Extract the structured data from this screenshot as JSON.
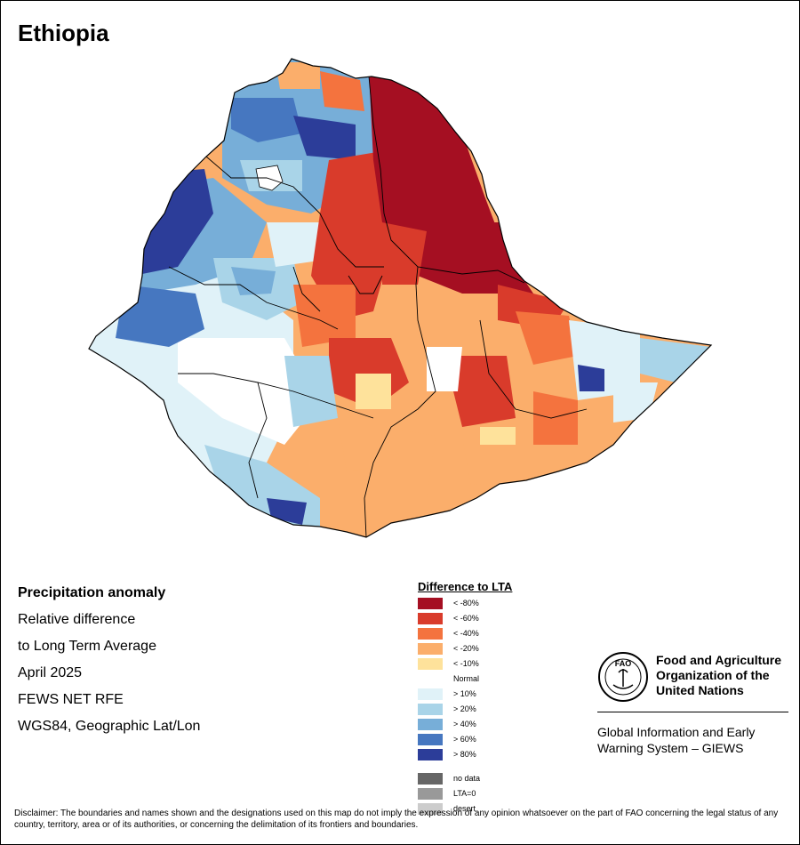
{
  "map": {
    "title": "Ethiopia"
  },
  "info": {
    "heading": "Precipitation anomaly",
    "line1": "Relative difference",
    "line2": "to Long Term Average",
    "period": "April 2025",
    "source": "FEWS NET RFE",
    "projection": "WGS84, Geographic Lat/Lon"
  },
  "legend": {
    "title": "Difference to LTA",
    "items": [
      {
        "label": "< -80%",
        "color": "#a50f22"
      },
      {
        "label": "< -60%",
        "color": "#d93b2b"
      },
      {
        "label": "< -40%",
        "color": "#f4733e"
      },
      {
        "label": "< -20%",
        "color": "#fbae6b"
      },
      {
        "label": "< -10%",
        "color": "#fee29b"
      },
      {
        "label": "Normal",
        "color": "#ffffff"
      },
      {
        "label": "> 10%",
        "color": "#e0f2f8"
      },
      {
        "label": "> 20%",
        "color": "#a9d4e8"
      },
      {
        "label": "> 40%",
        "color": "#77aed8"
      },
      {
        "label": "> 60%",
        "color": "#4677c0"
      },
      {
        "label": "> 80%",
        "color": "#2c3d99"
      }
    ],
    "extra": [
      {
        "label": "no data",
        "color": "#666666"
      },
      {
        "label": "LTA=0",
        "color": "#999999"
      },
      {
        "label": "desert",
        "color": "#cccccc"
      }
    ]
  },
  "fao": {
    "logo_text": "FAO",
    "name_line1": "Food and Agriculture",
    "name_line2": "Organization of the",
    "name_line3": "United Nations",
    "giews_line1": "Global Information and Early",
    "giews_line2": "Warning System – GIEWS"
  },
  "disclaimer": {
    "text": "Disclaimer: The boundaries and names shown and the designations used on this map do not imply the expression of any opinion whatsoever on the part of FAO concerning the legal status of any country, territory, area or of its authorities, or concerning the delimitation of its frontiers and boundaries."
  }
}
